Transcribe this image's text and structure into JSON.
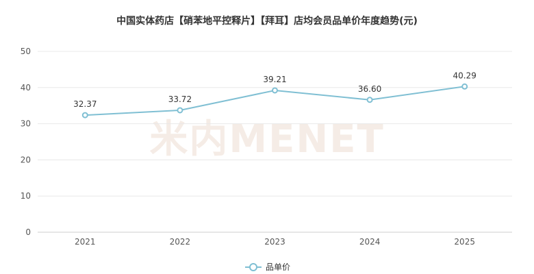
{
  "chart_data": {
    "type": "line",
    "title": "中国实体药店【硝苯地平控释片】【拜耳】店均会员品单价年度趋势(元)",
    "categories": [
      "2021",
      "2022",
      "2023",
      "2024",
      "2025"
    ],
    "series": [
      {
        "name": "品单价",
        "values": [
          32.37,
          33.72,
          39.21,
          36.6,
          40.29
        ],
        "labels": [
          "32.37",
          "33.72",
          "39.21",
          "36.60",
          "40.29"
        ],
        "color": "#7fbfd3"
      }
    ],
    "ylim": [
      0,
      50
    ],
    "yticks": [
      "0",
      "10",
      "20",
      "30",
      "40",
      "50"
    ],
    "grid": true,
    "legend_position": "bottom-center"
  },
  "watermark": "米内MENET",
  "colors": {
    "line": "#7fbfd3",
    "grid": "#e8e8e8",
    "axis": "#cccccc"
  }
}
